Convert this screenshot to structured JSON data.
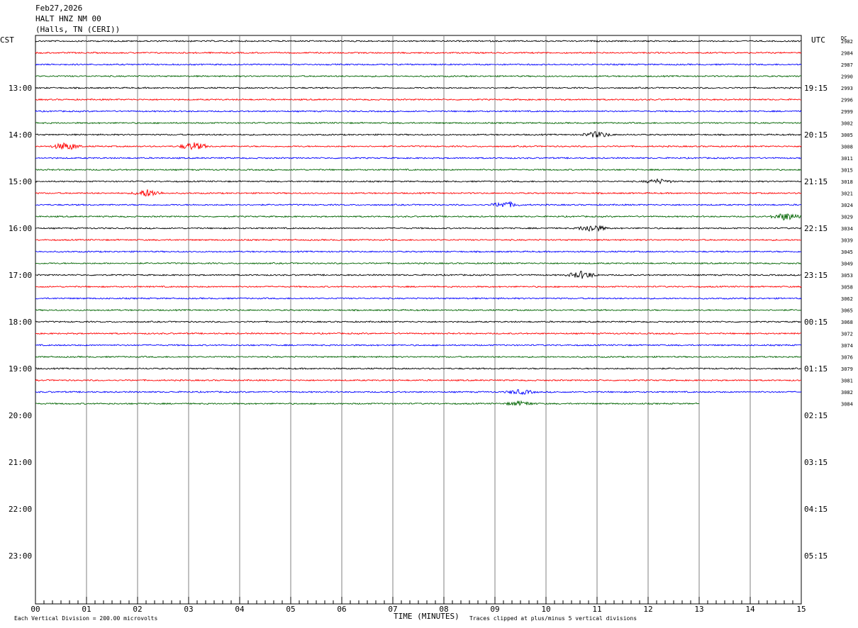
{
  "header": {
    "date": "Feb27,2026",
    "station": "HALT HNZ NM 00",
    "location": "(Halls, TN (CERI))"
  },
  "left_label": "CST",
  "right_label": "UTC",
  "dc_label": "DC",
  "chart_data": {
    "type": "line",
    "title": "",
    "xlabel": "TIME (MINUTES)",
    "x_ticks": [
      "00",
      "01",
      "02",
      "03",
      "04",
      "05",
      "06",
      "07",
      "08",
      "09",
      "10",
      "11",
      "12",
      "13",
      "14",
      "15"
    ],
    "xlim": [
      0,
      15
    ],
    "left_hour_labels": [
      "13:00",
      "14:00",
      "15:00",
      "16:00",
      "17:00",
      "18:00",
      "19:00",
      "20:00",
      "21:00",
      "22:00",
      "23:00"
    ],
    "right_hour_labels": [
      "19:15",
      "20:15",
      "21:15",
      "22:15",
      "23:15",
      "00:15",
      "01:15",
      "02:15",
      "03:15",
      "04:15",
      "05:15"
    ],
    "trace_count": 32,
    "trace_colors": [
      "#000000",
      "#ff0000",
      "#0000ff",
      "#006400"
    ],
    "last_trace_end_minute": 13.0,
    "dc_offsets": [
      "2982",
      "2984",
      "2987",
      "2990",
      "2993",
      "2996",
      "2999",
      "3002",
      "3005",
      "3008",
      "3011",
      "3015",
      "3018",
      "3021",
      "3024",
      "3029",
      "3034",
      "3039",
      "3045",
      "3049",
      "3053",
      "3058",
      "3062",
      "3065",
      "3068",
      "3072",
      "3074",
      "3076",
      "3079",
      "3081",
      "3082",
      "3084"
    ],
    "events": [
      {
        "trace": 8,
        "minute": 11.0,
        "amp": 4
      },
      {
        "trace": 9,
        "minute": 0.6,
        "amp": 5
      },
      {
        "trace": 9,
        "minute": 3.1,
        "amp": 5
      },
      {
        "trace": 12,
        "minute": 12.2,
        "amp": 3
      },
      {
        "trace": 13,
        "minute": 2.2,
        "amp": 5
      },
      {
        "trace": 14,
        "minute": 9.2,
        "amp": 4
      },
      {
        "trace": 15,
        "minute": 14.7,
        "amp": 5
      },
      {
        "trace": 16,
        "minute": 10.9,
        "amp": 5
      },
      {
        "trace": 20,
        "minute": 10.7,
        "amp": 5
      },
      {
        "trace": 30,
        "minute": 9.5,
        "amp": 3
      },
      {
        "trace": 31,
        "minute": 9.5,
        "amp": 3
      }
    ]
  },
  "footer": {
    "scale": "Each Vertical Division =  200.00 microvolts",
    "clip": "Traces clipped at plus/minus 5 vertical divisions"
  }
}
